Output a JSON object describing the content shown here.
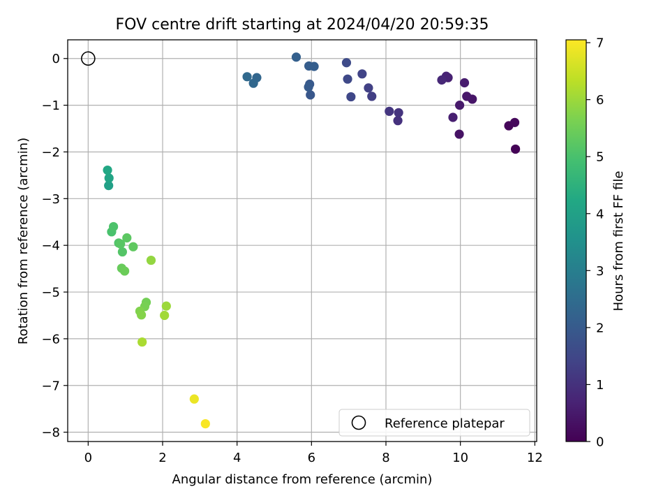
{
  "chart_data": {
    "type": "scatter",
    "title": "FOV centre drift starting at 2024/04/20 20:59:35",
    "xlabel": "Angular distance from reference (arcmin)",
    "ylabel": "Rotation from reference (arcmin)",
    "xlim": [
      -0.55,
      12.05
    ],
    "ylim": [
      -8.2,
      0.4
    ],
    "xticks": [
      0,
      2,
      4,
      6,
      8,
      10,
      12
    ],
    "yticks": [
      0,
      -1,
      -2,
      -3,
      -4,
      -5,
      -6,
      -7,
      -8
    ],
    "grid": true,
    "legend": {
      "placement": "lower-right",
      "entries": [
        "Reference platepar"
      ]
    },
    "reference_point": {
      "x": 0,
      "y": 0,
      "label": "Reference platepar"
    },
    "colorbar": {
      "label": "Hours from first FF file",
      "range": [
        0,
        7.05
      ],
      "ticks": [
        0,
        1,
        2,
        3,
        4,
        5,
        6,
        7
      ],
      "colormap": "viridis"
    },
    "points": [
      {
        "x": 11.48,
        "y": -1.94,
        "hours": 0.05
      },
      {
        "x": 11.3,
        "y": -1.44,
        "hours": 0.1
      },
      {
        "x": 11.46,
        "y": -1.37,
        "hours": 0.15
      },
      {
        "x": 9.97,
        "y": -1.62,
        "hours": 0.35
      },
      {
        "x": 10.32,
        "y": -0.87,
        "hours": 0.4
      },
      {
        "x": 10.17,
        "y": -0.81,
        "hours": 0.45
      },
      {
        "x": 9.98,
        "y": -1.0,
        "hours": 0.5
      },
      {
        "x": 10.11,
        "y": -0.52,
        "hours": 0.55
      },
      {
        "x": 9.8,
        "y": -1.26,
        "hours": 0.6
      },
      {
        "x": 9.67,
        "y": -0.41,
        "hours": 0.65
      },
      {
        "x": 9.62,
        "y": -0.38,
        "hours": 0.7
      },
      {
        "x": 9.5,
        "y": -0.46,
        "hours": 0.8
      },
      {
        "x": 8.32,
        "y": -1.33,
        "hours": 1.0
      },
      {
        "x": 8.34,
        "y": -1.16,
        "hours": 1.05
      },
      {
        "x": 8.09,
        "y": -1.13,
        "hours": 1.1
      },
      {
        "x": 7.62,
        "y": -0.81,
        "hours": 1.3
      },
      {
        "x": 7.53,
        "y": -0.63,
        "hours": 1.35
      },
      {
        "x": 7.36,
        "y": -0.33,
        "hours": 1.4
      },
      {
        "x": 7.06,
        "y": -0.82,
        "hours": 1.5
      },
      {
        "x": 6.97,
        "y": -0.44,
        "hours": 1.55
      },
      {
        "x": 6.94,
        "y": -0.09,
        "hours": 1.6
      },
      {
        "x": 5.97,
        "y": -0.78,
        "hours": 1.9
      },
      {
        "x": 5.95,
        "y": -0.55,
        "hours": 1.95
      },
      {
        "x": 5.92,
        "y": -0.61,
        "hours": 2.0
      },
      {
        "x": 5.93,
        "y": -0.16,
        "hours": 2.05
      },
      {
        "x": 6.07,
        "y": -0.17,
        "hours": 2.1
      },
      {
        "x": 5.59,
        "y": 0.03,
        "hours": 2.15
      },
      {
        "x": 4.53,
        "y": -0.41,
        "hours": 2.3
      },
      {
        "x": 4.44,
        "y": -0.53,
        "hours": 2.35
      },
      {
        "x": 4.27,
        "y": -0.39,
        "hours": 2.4
      },
      {
        "x": 0.55,
        "y": -2.72,
        "hours": 4.0
      },
      {
        "x": 0.56,
        "y": -2.56,
        "hours": 4.1
      },
      {
        "x": 0.52,
        "y": -2.39,
        "hours": 4.2
      },
      {
        "x": 0.63,
        "y": -3.71,
        "hours": 5.0
      },
      {
        "x": 0.68,
        "y": -3.6,
        "hours": 5.05
      },
      {
        "x": 0.82,
        "y": -3.95,
        "hours": 5.1
      },
      {
        "x": 0.92,
        "y": -4.14,
        "hours": 5.15
      },
      {
        "x": 0.87,
        "y": -3.97,
        "hours": 5.2
      },
      {
        "x": 1.04,
        "y": -3.84,
        "hours": 5.25
      },
      {
        "x": 1.21,
        "y": -4.03,
        "hours": 5.3
      },
      {
        "x": 0.9,
        "y": -4.49,
        "hours": 5.4
      },
      {
        "x": 0.98,
        "y": -4.55,
        "hours": 5.45
      },
      {
        "x": 1.56,
        "y": -5.22,
        "hours": 5.55
      },
      {
        "x": 1.52,
        "y": -5.31,
        "hours": 5.6
      },
      {
        "x": 1.39,
        "y": -5.41,
        "hours": 5.7
      },
      {
        "x": 1.43,
        "y": -5.49,
        "hours": 5.75
      },
      {
        "x": 1.69,
        "y": -4.32,
        "hours": 5.9
      },
      {
        "x": 2.1,
        "y": -5.3,
        "hours": 6.0
      },
      {
        "x": 2.05,
        "y": -5.5,
        "hours": 6.05
      },
      {
        "x": 1.45,
        "y": -6.07,
        "hours": 6.15
      },
      {
        "x": 2.85,
        "y": -7.29,
        "hours": 6.85
      },
      {
        "x": 3.15,
        "y": -7.82,
        "hours": 7.0
      }
    ]
  }
}
